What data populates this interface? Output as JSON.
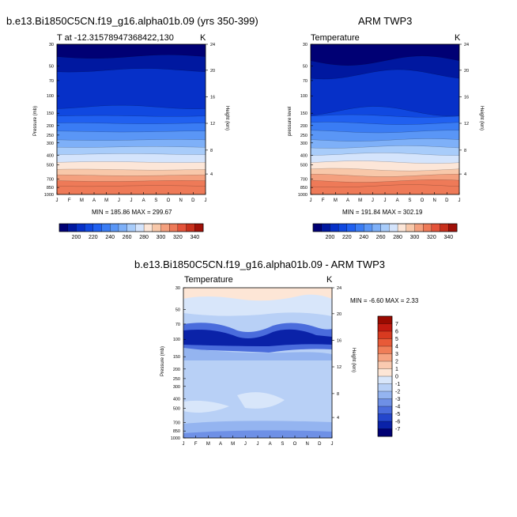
{
  "chart_data": [
    {
      "type": "heatmap",
      "title": "b.e13.Bi1850C5CN.f19_g16.alpha01b.09 (yrs 350-399)",
      "subtitle": "T at -12.31578947368422,130",
      "units": "K",
      "xlabel": "",
      "ylabel": "Pressure (mb)",
      "ylabel_right": "Height (km)",
      "x_ticks": [
        "J",
        "F",
        "M",
        "A",
        "M",
        "J",
        "J",
        "A",
        "S",
        "O",
        "N",
        "D",
        "J"
      ],
      "y_ticks": [
        "30",
        "50",
        "70",
        "100",
        "150",
        "200",
        "250",
        "300",
        "400",
        "500",
        "700",
        "850",
        "1000"
      ],
      "y_right_ticks": [
        "24",
        "20",
        "16",
        "12",
        "8",
        "4"
      ],
      "min": 185.86,
      "max": 299.67,
      "minmax_text": "MIN = 185.86 MAX = 299.67",
      "levels": [
        200,
        210,
        220,
        230,
        240,
        250,
        260,
        270,
        280,
        290,
        300,
        310,
        320,
        330,
        340
      ],
      "colorbar_labels": [
        "200",
        "220",
        "240",
        "260",
        "280",
        "300",
        "320",
        "340"
      ],
      "band_pressures": [
        40,
        55,
        130,
        160,
        190,
        230,
        280,
        330,
        390,
        470,
        560,
        640,
        730,
        820
      ],
      "colors": [
        "#000074",
        "#0018a0",
        "#0630c8",
        "#1048e0",
        "#2060f0",
        "#3a7cf4",
        "#5a96f6",
        "#7eb0f8",
        "#a8ccfa",
        "#d4e4fc",
        "#fce6d8",
        "#f8c8aa",
        "#f4a07e",
        "#ee7a58",
        "#e4533a",
        "#c8301c",
        "#a01008"
      ]
    },
    {
      "type": "heatmap",
      "title": "ARM TWP3",
      "subtitle": "Temperature",
      "units": "K",
      "xlabel": "",
      "ylabel": "pressure level",
      "ylabel_right": "Height (km)",
      "x_ticks": [
        "J",
        "F",
        "M",
        "A",
        "M",
        "J",
        "J",
        "A",
        "S",
        "O",
        "N",
        "D",
        "J"
      ],
      "y_ticks": [
        "30",
        "50",
        "70",
        "100",
        "150",
        "200",
        "250",
        "300",
        "400",
        "500",
        "700",
        "850",
        "1000"
      ],
      "y_right_ticks": [
        "24",
        "20",
        "16",
        "12",
        "8",
        "4"
      ],
      "min": 191.84,
      "max": 302.19,
      "minmax_text": "MIN = 191.84 MAX = 302.19",
      "levels": [
        200,
        210,
        220,
        230,
        240,
        250,
        260,
        270,
        280,
        290,
        300,
        310,
        320,
        330,
        340
      ],
      "colorbar_labels": [
        "200",
        "220",
        "240",
        "260",
        "280",
        "300",
        "320",
        "340"
      ]
    },
    {
      "type": "heatmap",
      "title": "b.e13.Bi1850C5CN.f19_g16.alpha01b.09 - ARM TWP3",
      "subtitle": "Temperature",
      "units": "K",
      "xlabel": "",
      "ylabel": "Pressure (mb)",
      "ylabel_right": "Height (km)",
      "x_ticks": [
        "J",
        "F",
        "M",
        "A",
        "M",
        "J",
        "J",
        "A",
        "S",
        "O",
        "N",
        "D",
        "J"
      ],
      "y_ticks": [
        "30",
        "50",
        "70",
        "100",
        "150",
        "200",
        "250",
        "300",
        "400",
        "500",
        "700",
        "850",
        "1000"
      ],
      "y_right_ticks": [
        "24",
        "20",
        "16",
        "12",
        "8",
        "4"
      ],
      "min": -6.6,
      "max": 2.33,
      "minmax_text": "MIN =  -6.60 MAX =   2.33",
      "levels": [
        -7,
        -6,
        -5,
        -4,
        -3,
        -2,
        -1,
        0,
        1,
        2,
        3,
        4,
        5,
        6,
        7
      ],
      "colorbar_labels": [
        "7",
        "6",
        "5",
        "4",
        "3",
        "2",
        "1",
        "0",
        "-1",
        "-2",
        "-3",
        "-4",
        "-5",
        "-6",
        "-7"
      ]
    }
  ]
}
